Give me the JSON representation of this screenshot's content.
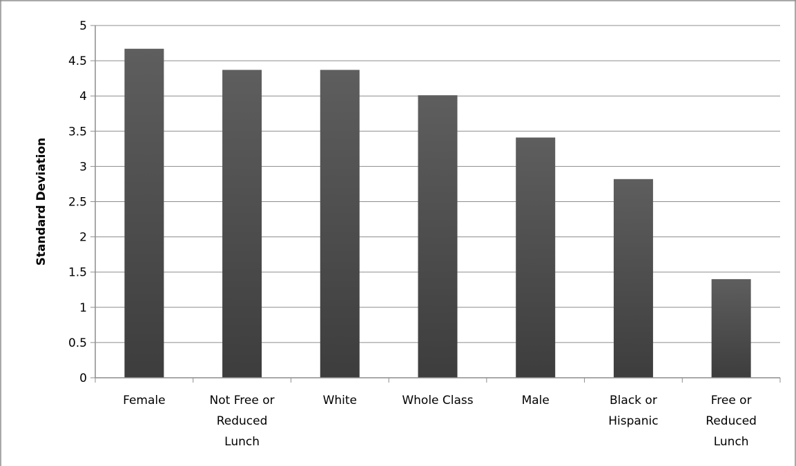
{
  "chart_data": {
    "type": "bar",
    "title": "",
    "xlabel": "",
    "ylabel": "Standard Deviation",
    "ylim": [
      0,
      5
    ],
    "ytick_step": 0.5,
    "y_ticks": [
      "0",
      "0.5",
      "1",
      "1.5",
      "2",
      "2.5",
      "3",
      "3.5",
      "4",
      "4.5",
      "5"
    ],
    "grid": true,
    "legend": "none",
    "categories": [
      [
        "Female"
      ],
      [
        "Not Free or",
        "Reduced",
        "Lunch"
      ],
      [
        "White"
      ],
      [
        "Whole Class"
      ],
      [
        "Male"
      ],
      [
        "Black or",
        "Hispanic"
      ],
      [
        "Free or",
        "Reduced",
        "Lunch"
      ]
    ],
    "values": [
      4.67,
      4.37,
      4.37,
      4.01,
      3.41,
      2.82,
      1.4
    ],
    "colors": {
      "bar_top": "#5e5e5e",
      "bar_bottom": "#3d3d3d",
      "gridline": "#8c8c8c",
      "axis": "#8c8c8c",
      "frame": "#8c8c8c"
    }
  }
}
